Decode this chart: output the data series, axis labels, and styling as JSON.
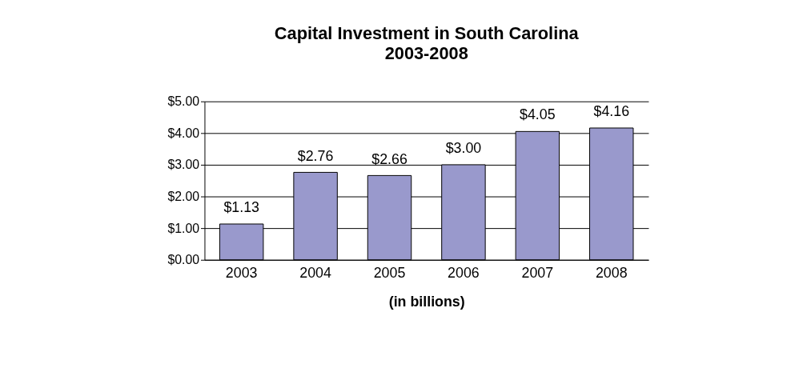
{
  "chart_data": {
    "type": "bar",
    "title": "Capital Investment in South Carolina",
    "subtitle": "2003-2008",
    "xlabel": "(in billions)",
    "categories": [
      "2003",
      "2004",
      "2005",
      "2006",
      "2007",
      "2008"
    ],
    "values": [
      1.13,
      2.76,
      2.66,
      3.0,
      4.05,
      4.16
    ],
    "value_labels": [
      "$1.13",
      "$2.76",
      "$2.66",
      "$3.00",
      "$4.05",
      "$4.16"
    ],
    "color": "#9999cc",
    "ylim": [
      0,
      5
    ],
    "yticks": [
      {
        "value": 0,
        "label": "$0.00"
      },
      {
        "value": 1,
        "label": "$1.00"
      },
      {
        "value": 2,
        "label": "$2.00"
      },
      {
        "value": 3,
        "label": "$3.00"
      },
      {
        "value": 4,
        "label": "$4.00"
      },
      {
        "value": 5,
        "label": "$5.00"
      }
    ],
    "grid": "y"
  }
}
